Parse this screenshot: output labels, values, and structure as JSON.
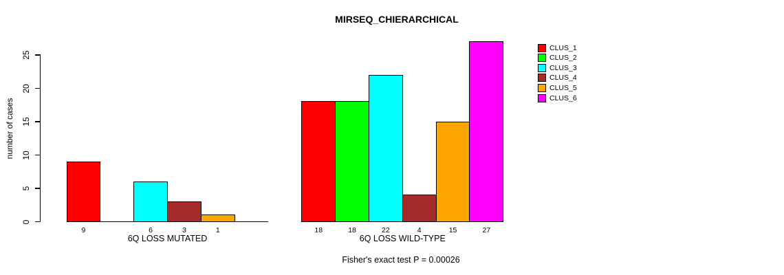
{
  "chart_data": {
    "type": "bar",
    "title": "MIRSEQ_CHIERARCHICAL",
    "ylabel": "number of cases",
    "xlabel": "",
    "yticks": [
      0,
      5,
      10,
      15,
      20,
      25
    ],
    "ylim": [
      0,
      27
    ],
    "grid": false,
    "legend_position": "right",
    "categories": [
      "CLUS_1",
      "CLUS_2",
      "CLUS_3",
      "CLUS_4",
      "CLUS_5",
      "CLUS_6"
    ],
    "legend": [
      {
        "name": "CLUS_1",
        "color": "#FF0000"
      },
      {
        "name": "CLUS_2",
        "color": "#00FF00"
      },
      {
        "name": "CLUS_3",
        "color": "#00FFFF"
      },
      {
        "name": "CLUS_4",
        "color": "#A52A2A"
      },
      {
        "name": "CLUS_5",
        "color": "#FFA500"
      },
      {
        "name": "CLUS_6",
        "color": "#FF00FF"
      }
    ],
    "groups": [
      {
        "label": "6Q LOSS MUTATED",
        "values": [
          9,
          0,
          6,
          3,
          1,
          0
        ],
        "bar_labels": [
          "9",
          "",
          "6",
          "3",
          "1",
          ""
        ]
      },
      {
        "label": "6Q LOSS WILD-TYPE",
        "values": [
          18,
          18,
          22,
          4,
          15,
          27
        ],
        "bar_labels": [
          "18",
          "18",
          "22",
          "4",
          "15",
          "27"
        ]
      }
    ],
    "annotation": "Fisher's exact test P = 0.00026"
  }
}
